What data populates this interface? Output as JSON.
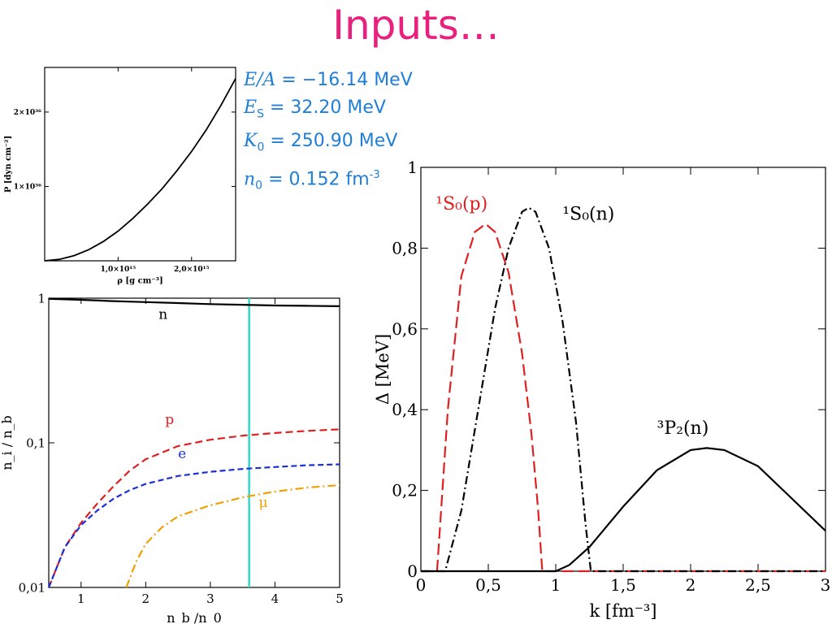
{
  "title": "Inputs…",
  "params": [
    {
      "sym": "E/A",
      "sub": "",
      "eq": " = −16.14",
      "unit": " MeV",
      "sup": ""
    },
    {
      "sym": "E",
      "sub": "S",
      "eq": " = 32.20",
      "unit": " MeV",
      "sup": ""
    },
    {
      "sym": "K",
      "sub": "0",
      "eq": " = 250.90",
      "unit": " MeV",
      "sup": ""
    },
    {
      "sym": "n",
      "sub": "0",
      "eq": " = 0.152",
      "unit": " fm",
      "sup": "-3"
    }
  ],
  "colors": {
    "black": "#000000",
    "red": "#e02020",
    "blue": "#1c2fd6",
    "orange": "#f0a000",
    "cyan": "#35d6c8",
    "title": "#e8207e",
    "params": "#1f7fd8"
  },
  "chart_data": [
    {
      "id": "eos",
      "type": "line",
      "xlabel": "ρ [g cm⁻³]",
      "ylabel": "P [dyn cm⁻²]",
      "xlim": [
        0,
        2.6
      ],
      "ylim": [
        0,
        2.6
      ],
      "xticks": [
        {
          "v": 1.0,
          "label": "1,0×10¹⁵"
        },
        {
          "v": 2.0,
          "label": "2,0×10¹⁵"
        }
      ],
      "yticks": [
        {
          "v": 1.0,
          "label": "1×10³⁶"
        },
        {
          "v": 2.0,
          "label": "2×10³⁶"
        }
      ],
      "series": [
        {
          "color": "#000000",
          "dash": "",
          "x": [
            0.0,
            0.2,
            0.4,
            0.6,
            0.8,
            1.0,
            1.2,
            1.4,
            1.6,
            1.8,
            2.0,
            2.2,
            2.4,
            2.6
          ],
          "y": [
            0.0,
            0.02,
            0.07,
            0.15,
            0.26,
            0.4,
            0.57,
            0.76,
            0.97,
            1.21,
            1.47,
            1.76,
            2.09,
            2.45
          ]
        }
      ]
    },
    {
      "id": "fractions",
      "type": "line",
      "logy": true,
      "xlabel": "n_b /n_0",
      "ylabel": "n_i / n_b",
      "xlim": [
        0.5,
        5
      ],
      "ylim": [
        0.01,
        1
      ],
      "xticks": [
        {
          "v": 1,
          "label": "1"
        },
        {
          "v": 2,
          "label": "2"
        },
        {
          "v": 3,
          "label": "3"
        },
        {
          "v": 4,
          "label": "4"
        },
        {
          "v": 5,
          "label": "5"
        }
      ],
      "yticks": [
        {
          "v": 0.01,
          "label": "0,01"
        },
        {
          "v": 0.1,
          "label": "0,1"
        },
        {
          "v": 1,
          "label": "1"
        }
      ],
      "vline": {
        "x": 3.6,
        "color": "#35d6c8"
      },
      "series": [
        {
          "name": "n",
          "color": "#000000",
          "dash": "",
          "x": [
            0.5,
            1.0,
            1.5,
            2.0,
            2.5,
            3.0,
            3.5,
            4.0,
            4.5,
            5.0
          ],
          "y": [
            0.99,
            0.975,
            0.955,
            0.94,
            0.925,
            0.91,
            0.9,
            0.89,
            0.885,
            0.88
          ]
        },
        {
          "name": "p",
          "color": "#e02020",
          "dash": "9,5",
          "x": [
            0.5,
            0.75,
            1.0,
            1.25,
            1.5,
            1.75,
            2.0,
            2.5,
            3.0,
            3.5,
            4.0,
            4.5,
            5.0
          ],
          "y": [
            0.01,
            0.019,
            0.028,
            0.038,
            0.05,
            0.064,
            0.077,
            0.095,
            0.105,
            0.112,
            0.117,
            0.121,
            0.124
          ]
        },
        {
          "name": "e",
          "color": "#1c2fd6",
          "dash": "7,4",
          "x": [
            0.5,
            0.75,
            1.0,
            1.25,
            1.5,
            1.75,
            2.0,
            2.5,
            3.0,
            3.5,
            4.0,
            4.5,
            5.0
          ],
          "y": [
            0.01,
            0.019,
            0.027,
            0.034,
            0.041,
            0.047,
            0.052,
            0.059,
            0.063,
            0.066,
            0.068,
            0.07,
            0.071
          ]
        },
        {
          "name": "μ",
          "color": "#f0a000",
          "dash": "10,4,2,4",
          "x": [
            1.7,
            1.85,
            2.0,
            2.25,
            2.5,
            3.0,
            3.5,
            4.0,
            4.5,
            5.0
          ],
          "y": [
            0.01,
            0.015,
            0.02,
            0.026,
            0.031,
            0.037,
            0.042,
            0.046,
            0.049,
            0.051
          ]
        }
      ],
      "labels": [
        {
          "text": "n",
          "x": 2.2,
          "y": 0.72,
          "color": "#000000"
        },
        {
          "text": "p",
          "x": 2.3,
          "y": 0.135,
          "color": "#e02020"
        },
        {
          "text": "e",
          "x": 2.5,
          "y": 0.078,
          "color": "#1c2fd6"
        },
        {
          "text": "μ",
          "x": 3.75,
          "y": 0.036,
          "color": "#f0a000"
        }
      ]
    },
    {
      "id": "gaps",
      "type": "line",
      "xlabel": "k [fm⁻³]",
      "ylabel": "Δ [MeV]",
      "xlim": [
        0,
        3
      ],
      "ylim": [
        0,
        1
      ],
      "xticks": [
        {
          "v": 0,
          "label": "0"
        },
        {
          "v": 0.5,
          "label": "0,5"
        },
        {
          "v": 1,
          "label": "1"
        },
        {
          "v": 1.5,
          "label": "1,5"
        },
        {
          "v": 2,
          "label": "2"
        },
        {
          "v": 2.5,
          "label": "2,5"
        },
        {
          "v": 3,
          "label": "3"
        }
      ],
      "yticks": [
        {
          "v": 0,
          "label": "0"
        },
        {
          "v": 0.2,
          "label": "0,2"
        },
        {
          "v": 0.4,
          "label": "0,4"
        },
        {
          "v": 0.6,
          "label": "0,6"
        },
        {
          "v": 0.8,
          "label": "0,8"
        },
        {
          "v": 1,
          "label": "1"
        }
      ],
      "series": [
        {
          "name": "¹S₀(p)",
          "color": "#e02020",
          "dash": "14,6",
          "x": [
            0.0,
            0.12,
            0.2,
            0.3,
            0.4,
            0.48,
            0.55,
            0.65,
            0.75,
            0.82,
            0.87,
            0.9,
            1.5,
            2.0,
            2.5,
            3.0
          ],
          "y": [
            0.0,
            0.0,
            0.4,
            0.73,
            0.84,
            0.86,
            0.84,
            0.74,
            0.54,
            0.34,
            0.15,
            0.0,
            0.0,
            0.0,
            0.0,
            0.0
          ]
        },
        {
          "name": "¹S₀(n)",
          "color": "#000000",
          "dash": "10,4,2,4",
          "x": [
            0.0,
            0.18,
            0.3,
            0.45,
            0.55,
            0.65,
            0.75,
            0.8,
            0.85,
            0.95,
            1.05,
            1.15,
            1.22,
            1.26,
            1.5,
            2.0,
            2.5,
            3.0
          ],
          "y": [
            0.0,
            0.0,
            0.15,
            0.45,
            0.65,
            0.8,
            0.89,
            0.9,
            0.89,
            0.8,
            0.62,
            0.37,
            0.12,
            0.0,
            0.0,
            0.0,
            0.0,
            0.0
          ]
        },
        {
          "name": "³P₂(n)",
          "color": "#000000",
          "dash": "",
          "x": [
            0.0,
            1.0,
            1.1,
            1.25,
            1.5,
            1.75,
            2.0,
            2.12,
            2.25,
            2.5,
            2.75,
            3.0
          ],
          "y": [
            0.0,
            0.0,
            0.015,
            0.06,
            0.16,
            0.25,
            0.3,
            0.305,
            0.3,
            0.26,
            0.18,
            0.1
          ]
        }
      ],
      "labels": [
        {
          "text": "¹S₀(p)",
          "x": 0.11,
          "y": 0.895,
          "color": "#e02020"
        },
        {
          "text": "¹S₀(n)",
          "x": 1.05,
          "y": 0.87,
          "color": "#000000"
        },
        {
          "text": "³P₂(n)",
          "x": 1.75,
          "y": 0.34,
          "color": "#000000"
        }
      ]
    }
  ]
}
